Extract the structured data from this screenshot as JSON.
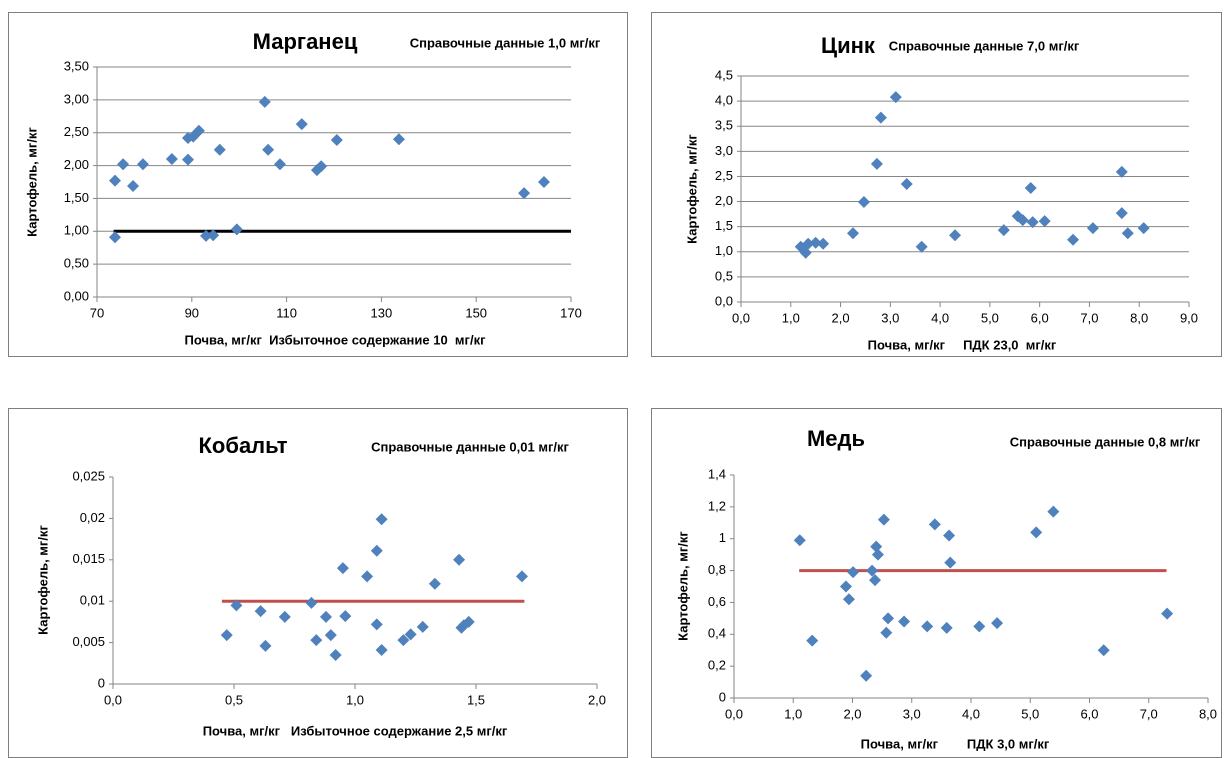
{
  "chart_data": [
    {
      "type": "scatter",
      "title": "Марганец",
      "subtitle": "Справочные данные 1,0 мг/кг",
      "x_label": "Почва, мг/кг  Избыточное содержание 10  мг/кг",
      "y_label": "Картофель, мг/кг",
      "color": "#4f81bd",
      "x": [
        73.8,
        73.8,
        75.5,
        77.6,
        79.7,
        85.8,
        89.2,
        89.2,
        90.3,
        91.5,
        93.0,
        94.5,
        95.9,
        99.5,
        105.4,
        106.1,
        108.6,
        113.2,
        116.4,
        117.3,
        120.6,
        133.7,
        160.1,
        164.3
      ],
      "values": [
        1.77,
        0.91,
        2.02,
        1.69,
        2.02,
        2.1,
        2.09,
        2.42,
        2.44,
        2.53,
        0.93,
        0.94,
        2.24,
        1.03,
        2.97,
        2.24,
        2.02,
        2.63,
        1.93,
        1.99,
        2.39,
        2.4,
        1.58,
        1.75
      ],
      "ref_line": {
        "x": [
          73.5,
          170
        ],
        "y": [
          1,
          1
        ],
        "color": "#000000"
      },
      "xlim": [
        70,
        170
      ],
      "xticks": [
        70,
        90,
        110,
        130,
        150,
        170
      ],
      "ylim": [
        0,
        3.5
      ],
      "yticks": [
        {
          "value": 0,
          "label": "0,00"
        },
        {
          "value": 0.5,
          "label": "0,50"
        },
        {
          "value": 1,
          "label": "1,00"
        },
        {
          "value": 1.5,
          "label": "1,50"
        },
        {
          "value": 2,
          "label": "2,00"
        },
        {
          "value": 2.5,
          "label": "2,50"
        },
        {
          "value": 3,
          "label": "3,00"
        },
        {
          "value": 3.5,
          "label": "3,50"
        }
      ],
      "grid": true
    },
    {
      "type": "scatter",
      "title": "Цинк",
      "subtitle": "Справочные данные 7,0 мг/кг",
      "x_label": "Почва, мг/кг     ПДК 23,0  мг/кг",
      "y_label": "Картофель, мг/кг",
      "color": "#4f81bd",
      "x": [
        1.2,
        1.3,
        1.35,
        1.5,
        1.65,
        2.25,
        2.47,
        2.73,
        2.81,
        3.11,
        3.33,
        3.63,
        4.3,
        5.28,
        5.56,
        5.66,
        5.82,
        5.86,
        6.1,
        6.67,
        7.07,
        7.65,
        7.65,
        7.77,
        8.09
      ],
      "values": [
        1.1,
        0.98,
        1.16,
        1.18,
        1.16,
        1.37,
        1.99,
        2.75,
        3.67,
        4.08,
        2.35,
        1.1,
        1.33,
        1.43,
        1.71,
        1.63,
        2.27,
        1.59,
        1.61,
        1.24,
        1.47,
        2.59,
        1.77,
        1.37,
        1.47
      ],
      "xlim": [
        0,
        9
      ],
      "xticks": [
        {
          "value": 0,
          "label": "0,0"
        },
        {
          "value": 1,
          "label": "1,0"
        },
        {
          "value": 2,
          "label": "2,0"
        },
        {
          "value": 3,
          "label": "3,0"
        },
        {
          "value": 4,
          "label": "4,0"
        },
        {
          "value": 5,
          "label": "5,0"
        },
        {
          "value": 6,
          "label": "6,0"
        },
        {
          "value": 7,
          "label": "7,0"
        },
        {
          "value": 8,
          "label": "8,0"
        },
        {
          "value": 9,
          "label": "9,0"
        }
      ],
      "ylim": [
        0,
        4.5
      ],
      "yticks": [
        {
          "value": 0,
          "label": "0,0"
        },
        {
          "value": 0.5,
          "label": "0,5"
        },
        {
          "value": 1,
          "label": "1,0"
        },
        {
          "value": 1.5,
          "label": "1,5"
        },
        {
          "value": 2,
          "label": "2,0"
        },
        {
          "value": 2.5,
          "label": "2,5"
        },
        {
          "value": 3,
          "label": "3,0"
        },
        {
          "value": 3.5,
          "label": "3,5"
        },
        {
          "value": 4,
          "label": "4,0"
        },
        {
          "value": 4.5,
          "label": "4,5"
        }
      ],
      "grid": true
    },
    {
      "type": "scatter",
      "title": "Кобальт",
      "subtitle": "Справочные данные  0,01 мг/кг",
      "x_label": "Почва, мг/кг   Избыточное содержание 2,5 мг/кг",
      "y_label": "Картофель, мг/кг",
      "color": "#4f81bd",
      "x": [
        0.47,
        0.51,
        0.61,
        0.63,
        0.71,
        0.82,
        0.84,
        0.88,
        0.9,
        0.92,
        0.95,
        0.96,
        1.05,
        1.09,
        1.09,
        1.11,
        1.11,
        1.2,
        1.23,
        1.28,
        1.33,
        1.43,
        1.44,
        1.45,
        1.47,
        1.69
      ],
      "values": [
        0.0059,
        0.0095,
        0.0088,
        0.0046,
        0.0081,
        0.0098,
        0.0053,
        0.0081,
        0.0059,
        0.0035,
        0.014,
        0.0082,
        0.013,
        0.0161,
        0.0072,
        0.0199,
        0.0041,
        0.0053,
        0.006,
        0.0069,
        0.0121,
        0.015,
        0.0068,
        0.0071,
        0.0075,
        0.013
      ],
      "ref_line": {
        "x": [
          0.45,
          1.7
        ],
        "y": [
          0.01,
          0.01
        ],
        "color": "#c0504d"
      },
      "xlim": [
        0,
        2
      ],
      "xticks": [
        {
          "value": 0,
          "label": "0,0"
        },
        {
          "value": 0.5,
          "label": "0,5"
        },
        {
          "value": 1,
          "label": "1,0"
        },
        {
          "value": 1.5,
          "label": "1,5"
        },
        {
          "value": 2,
          "label": "2,0"
        }
      ],
      "ylim": [
        0,
        0.025
      ],
      "yticks": [
        0,
        {
          "value": 0.005,
          "label": "0,005"
        },
        {
          "value": 0.01,
          "label": "0,01"
        },
        {
          "value": 0.015,
          "label": "0,015"
        },
        {
          "value": 0.02,
          "label": "0,02"
        },
        {
          "value": 0.025,
          "label": "0,025"
        }
      ],
      "grid": false
    },
    {
      "type": "scatter",
      "title": "Медь",
      "subtitle": "Справочные данные 0,8 мг/кг",
      "x_label": "Почва, мг/кг        ПДК 3,0 мг/кг",
      "y_label": "Картофель, мг/кг",
      "color": "#4f81bd",
      "x": [
        1.11,
        1.32,
        1.89,
        1.94,
        2.01,
        2.23,
        2.33,
        2.38,
        2.4,
        2.43,
        2.53,
        2.57,
        2.6,
        2.87,
        3.26,
        3.39,
        3.59,
        3.63,
        3.65,
        4.14,
        4.44,
        5.1,
        5.39,
        6.24,
        7.31
      ],
      "values": [
        0.99,
        0.36,
        0.7,
        0.62,
        0.79,
        0.14,
        0.8,
        0.74,
        0.95,
        0.9,
        1.12,
        0.41,
        0.5,
        0.48,
        0.45,
        1.09,
        0.44,
        1.02,
        0.85,
        0.45,
        0.47,
        1.04,
        1.17,
        0.3,
        0.53
      ],
      "ref_line": {
        "x": [
          1.1,
          7.3
        ],
        "y": [
          0.8,
          0.8
        ],
        "color": "#c0504d"
      },
      "xlim": [
        0,
        8
      ],
      "xticks": [
        {
          "value": 0,
          "label": "0,0"
        },
        {
          "value": 1,
          "label": "1,0"
        },
        {
          "value": 2,
          "label": "2,0"
        },
        {
          "value": 3,
          "label": "3,0"
        },
        {
          "value": 4,
          "label": "4,0"
        },
        {
          "value": 5,
          "label": "5,0"
        },
        {
          "value": 6,
          "label": "6,0"
        },
        {
          "value": 7,
          "label": "7,0"
        },
        {
          "value": 8,
          "label": "8,0"
        }
      ],
      "ylim": [
        0,
        1.4
      ],
      "yticks": [
        0,
        {
          "value": 0.2,
          "label": "0,2"
        },
        {
          "value": 0.4,
          "label": "0,4"
        },
        {
          "value": 0.6,
          "label": "0,6"
        },
        {
          "value": 0.8,
          "label": "0,8"
        },
        1,
        {
          "value": 1.2,
          "label": "1,2"
        },
        {
          "value": 1.4,
          "label": "1,4"
        }
      ],
      "grid": false
    }
  ]
}
